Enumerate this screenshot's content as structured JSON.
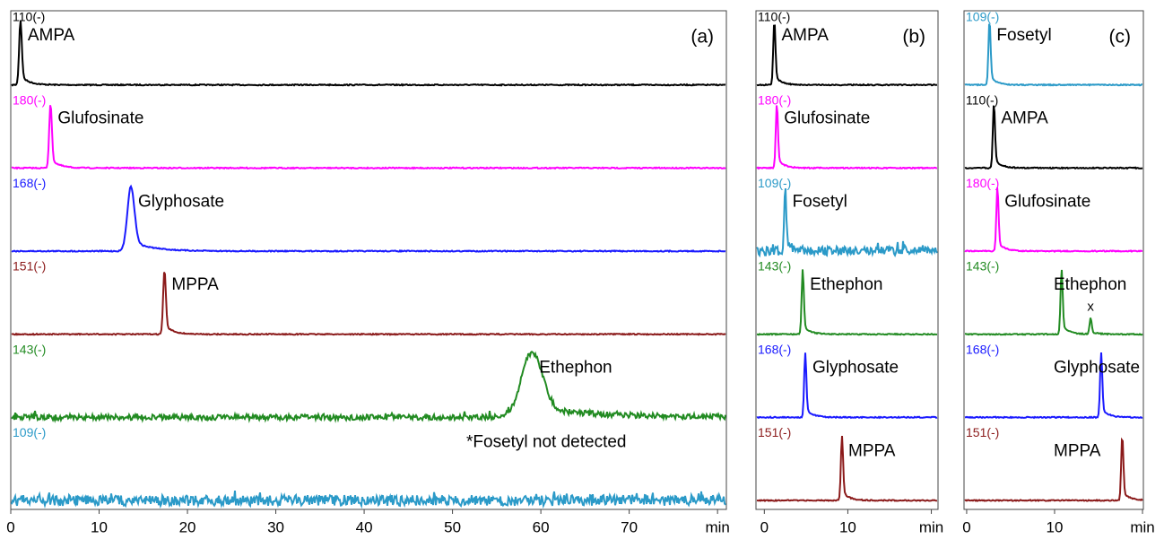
{
  "chart_data": [
    {
      "type": "chromatogram",
      "panel_label": "(a)",
      "xlim": [
        0,
        81
      ],
      "xticks": [
        0,
        10,
        20,
        30,
        40,
        50,
        60,
        70,
        {
          "value": 80,
          "label": "min"
        }
      ],
      "annotation": "*Fosetyl not detected",
      "traces": [
        {
          "label": "110(-)",
          "name": "AMPA",
          "color": "#000000",
          "peak": 1.1
        },
        {
          "label": "180(-)",
          "name": "Glufosinate",
          "color": "#ff00ff",
          "peak": 4.5
        },
        {
          "label": "168(-)",
          "name": "Glyphosate",
          "color": "#1a1aff",
          "peak": 13.6
        },
        {
          "label": "151(-)",
          "name": "MPPA",
          "color": "#8b1a1a",
          "peak": 17.4
        },
        {
          "label": "143(-)",
          "name": "Ethephon",
          "color": "#228b22",
          "peak": 59
        },
        {
          "label": "109(-)",
          "name": null,
          "color": "#2b9ac8",
          "peak": null
        }
      ]
    },
    {
      "type": "chromatogram",
      "panel_label": "(b)",
      "xlim": [
        -1,
        20.8
      ],
      "xticks": [
        0,
        10,
        {
          "value": 20,
          "label": "min"
        }
      ],
      "traces": [
        {
          "label": "110(-)",
          "name": "AMPA",
          "color": "#000000",
          "peak": 1.2
        },
        {
          "label": "180(-)",
          "name": "Glufosinate",
          "color": "#ff00ff",
          "peak": 1.5
        },
        {
          "label": "109(-)",
          "name": "Fosetyl",
          "color": "#2b9ac8",
          "peak": 2.5
        },
        {
          "label": "143(-)",
          "name": "Ethephon",
          "color": "#228b22",
          "peak": 4.6
        },
        {
          "label": "168(-)",
          "name": "Glyphosate",
          "color": "#1a1aff",
          "peak": 4.9
        },
        {
          "label": "151(-)",
          "name": "MPPA",
          "color": "#8b1a1a",
          "peak": 9.3
        }
      ]
    },
    {
      "type": "chromatogram",
      "panel_label": "(c)",
      "xlim": [
        -0.3,
        20.1
      ],
      "xticks": [
        0,
        10,
        {
          "value": 20,
          "label": "min"
        }
      ],
      "traces": [
        {
          "label": "109(-)",
          "name": "Fosetyl",
          "color": "#2b9ac8",
          "peak": 2.6
        },
        {
          "label": "110(-)",
          "name": "AMPA",
          "color": "#000000",
          "peak": 3.1
        },
        {
          "label": "180(-)",
          "name": "Glufosinate",
          "color": "#ff00ff",
          "peak": 3.5
        },
        {
          "label": "143(-)",
          "name": "Ethephon",
          "color": "#228b22",
          "peak": 10.8,
          "marker": "x",
          "marker_x": 14.1
        },
        {
          "label": "168(-)",
          "name": "Glyphosate",
          "color": "#1a1aff",
          "peak": 15.3
        },
        {
          "label": "151(-)",
          "name": "MPPA",
          "color": "#8b1a1a",
          "peak": 17.7
        }
      ]
    }
  ]
}
